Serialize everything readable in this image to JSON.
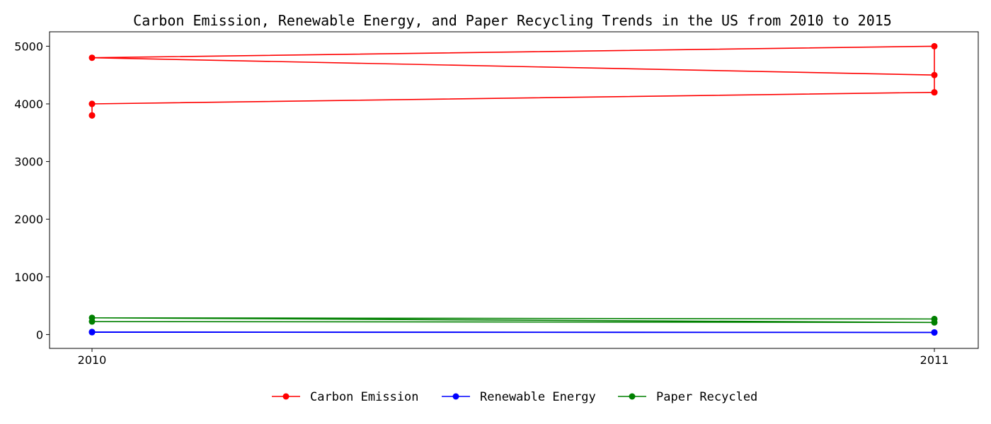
{
  "chart_data": {
    "type": "line",
    "title": "Carbon Emission, Renewable Energy, and Paper Recycling Trends in the US from 2010 to 2015",
    "xlabel": "",
    "ylabel": "",
    "x_ticks": [
      "2010",
      "2011"
    ],
    "y_ticks": [
      0,
      1000,
      2000,
      3000,
      4000,
      5000
    ],
    "ylim": [
      -240,
      5250
    ],
    "grid": false,
    "legend_position": "bottom-center",
    "series": [
      {
        "name": "Carbon Emission",
        "color": "#ff0000",
        "x": [
          "2010",
          "2010",
          "2011",
          "2011",
          "2010",
          "2011",
          "2011",
          "2010",
          "2010"
        ],
        "values": [
          3800,
          4000,
          4200,
          4500,
          4800,
          5000,
          4200,
          4000,
          3800
        ]
      },
      {
        "name": "Renewable Energy",
        "color": "#0000ff",
        "x": [
          "2010",
          "2011",
          "2010",
          "2011"
        ],
        "values": [
          45,
          38,
          40,
          35
        ]
      },
      {
        "name": "Paper Recycled",
        "color": "#008000",
        "x": [
          "2010",
          "2011",
          "2010",
          "2011"
        ],
        "values": [
          225,
          210,
          290,
          270
        ]
      }
    ]
  }
}
